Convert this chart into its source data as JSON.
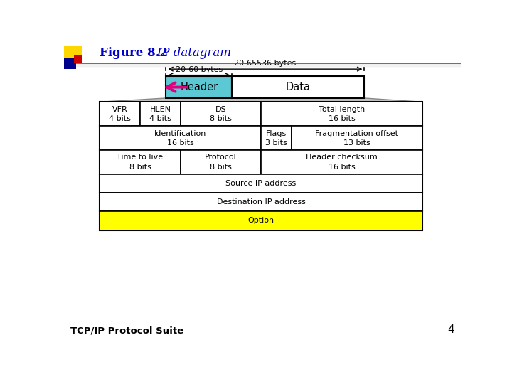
{
  "title_bold": "Figure 8.2",
  "title_italic": "   IP datagram",
  "title_color": "#0000CD",
  "bg_color": "#ffffff",
  "footer_text": "TCP/IP Protocol Suite",
  "footer_number": "4",
  "header_box_color": "#5BC8D4",
  "option_box_color": "#ffff00",
  "annotation_20_65536": "20-65536 bytes",
  "annotation_20_60": "20-60 bytes",
  "header_label": "Header",
  "data_label": "Data",
  "rows": [
    [
      {
        "label": "VFR\n4 bits",
        "weight": 4
      },
      {
        "label": "HLEN\n4 bits",
        "weight": 4
      },
      {
        "label": "DS\n8 bits",
        "weight": 8
      },
      {
        "label": "Total length\n16 bits",
        "weight": 16
      }
    ],
    [
      {
        "label": "Identification\n16 bits",
        "weight": 16
      },
      {
        "label": "Flags\n3 bits",
        "weight": 3
      },
      {
        "label": "Fragmentation offset\n13 bits",
        "weight": 13
      }
    ],
    [
      {
        "label": "Time to live\n8 bits",
        "weight": 8
      },
      {
        "label": "Protocol\n8 bits",
        "weight": 8
      },
      {
        "label": "Header checksum\n16 bits",
        "weight": 16
      }
    ],
    [
      {
        "label": "Source IP address",
        "weight": 32
      }
    ],
    [
      {
        "label": "Destination IP address",
        "weight": 32
      }
    ],
    [
      {
        "label": "Option",
        "weight": 32,
        "bg": "#ffff00"
      }
    ]
  ]
}
